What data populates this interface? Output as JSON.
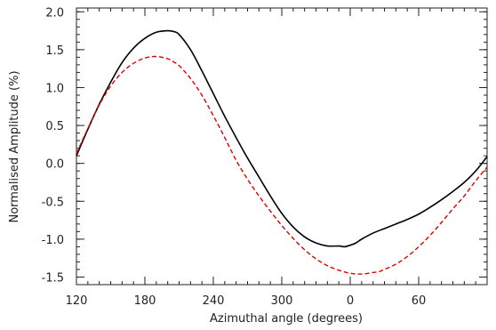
{
  "chart_data": {
    "type": "line",
    "title": "",
    "xlabel": "Azimuthal angle (degrees)",
    "ylabel": "Normalised Amplitude (%)",
    "x_axis": {
      "range_deg": [
        120,
        480
      ],
      "tick_values_deg": [
        120,
        180,
        240,
        300,
        360,
        420
      ],
      "tick_labels": [
        "120",
        "180",
        "240",
        "300",
        "0",
        "60"
      ],
      "minor_step_deg": 10
    },
    "y_axis": {
      "range": [
        -1.6,
        2.05
      ],
      "tick_values": [
        -1.5,
        -1.0,
        -0.5,
        0.0,
        0.5,
        1.0,
        1.5,
        2.0
      ],
      "tick_labels": [
        "-1.5",
        "-1.0",
        "-0.5",
        "0.0",
        "0.5",
        "1.0",
        "1.5",
        "2.0"
      ],
      "minor_step": 0.1
    },
    "grid": false,
    "legend": "none",
    "series": [
      {
        "style": "solid",
        "color": "#000000",
        "x": [
          120,
          130,
          140,
          150,
          160,
          170,
          180,
          190,
          200,
          205,
          210,
          220,
          230,
          240,
          250,
          260,
          270,
          280,
          290,
          300,
          310,
          320,
          330,
          340,
          350,
          355,
          360,
          365,
          370,
          380,
          390,
          400,
          410,
          420,
          430,
          440,
          450,
          460,
          470,
          480
        ],
        "y": [
          0.1,
          0.45,
          0.78,
          1.07,
          1.33,
          1.52,
          1.65,
          1.73,
          1.75,
          1.74,
          1.7,
          1.5,
          1.22,
          0.92,
          0.62,
          0.34,
          0.07,
          -0.18,
          -0.43,
          -0.66,
          -0.84,
          -0.97,
          -1.05,
          -1.09,
          -1.09,
          -1.1,
          -1.08,
          -1.05,
          -1.0,
          -0.92,
          -0.86,
          -0.8,
          -0.74,
          -0.67,
          -0.58,
          -0.48,
          -0.37,
          -0.25,
          -0.1,
          0.09
        ]
      },
      {
        "style": "dashed",
        "color": "#e00000",
        "x": [
          120,
          130,
          140,
          150,
          160,
          170,
          180,
          190,
          200,
          205,
          210,
          220,
          230,
          240,
          250,
          260,
          270,
          280,
          290,
          300,
          310,
          320,
          330,
          340,
          350,
          360,
          370,
          380,
          385,
          390,
          400,
          410,
          420,
          430,
          440,
          450,
          460,
          470,
          480
        ],
        "y": [
          0.13,
          0.46,
          0.77,
          1.02,
          1.2,
          1.32,
          1.39,
          1.41,
          1.38,
          1.34,
          1.29,
          1.12,
          0.9,
          0.63,
          0.34,
          0.04,
          -0.21,
          -0.43,
          -0.63,
          -0.82,
          -0.99,
          -1.14,
          -1.26,
          -1.35,
          -1.41,
          -1.45,
          -1.46,
          -1.44,
          -1.43,
          -1.4,
          -1.33,
          -1.23,
          -1.1,
          -0.95,
          -0.78,
          -0.6,
          -0.43,
          -0.23,
          -0.05
        ]
      }
    ]
  }
}
